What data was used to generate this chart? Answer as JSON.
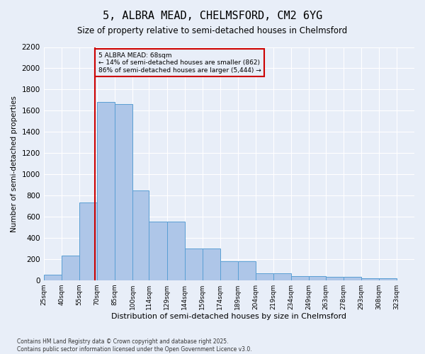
{
  "title": "5, ALBRA MEAD, CHELMSFORD, CM2 6YG",
  "subtitle": "Size of property relative to semi-detached houses in Chelmsford",
  "xlabel": "Distribution of semi-detached houses by size in Chelmsford",
  "ylabel": "Number of semi-detached properties",
  "footer_line1": "Contains HM Land Registry data © Crown copyright and database right 2025.",
  "footer_line2": "Contains public sector information licensed under the Open Government Licence v3.0.",
  "annotation_title": "5 ALBRA MEAD: 68sqm",
  "annotation_line1": "← 14% of semi-detached houses are smaller (862)",
  "annotation_line2": "86% of semi-detached houses are larger (5,444) →",
  "property_size": 68,
  "bin_labels": [
    "25sqm",
    "40sqm",
    "55sqm",
    "70sqm",
    "85sqm",
    "100sqm",
    "114sqm",
    "129sqm",
    "144sqm",
    "159sqm",
    "174sqm",
    "189sqm",
    "204sqm",
    "219sqm",
    "234sqm",
    "249sqm",
    "263sqm",
    "278sqm",
    "293sqm",
    "308sqm",
    "323sqm"
  ],
  "bin_edges": [
    25,
    40,
    55,
    70,
    85,
    100,
    114,
    129,
    144,
    159,
    174,
    189,
    204,
    219,
    234,
    249,
    263,
    278,
    293,
    308,
    323,
    338
  ],
  "bar_heights": [
    50,
    230,
    730,
    1680,
    1660,
    845,
    555,
    555,
    300,
    300,
    180,
    180,
    65,
    65,
    40,
    40,
    30,
    30,
    20,
    20,
    0
  ],
  "bar_color": "#aec6e8",
  "bar_edge_color": "#5a9fd4",
  "vline_color": "#cc0000",
  "background_color": "#e8eef8",
  "ylim": [
    0,
    2200
  ],
  "yticks": [
    0,
    200,
    400,
    600,
    800,
    1000,
    1200,
    1400,
    1600,
    1800,
    2000,
    2200
  ]
}
